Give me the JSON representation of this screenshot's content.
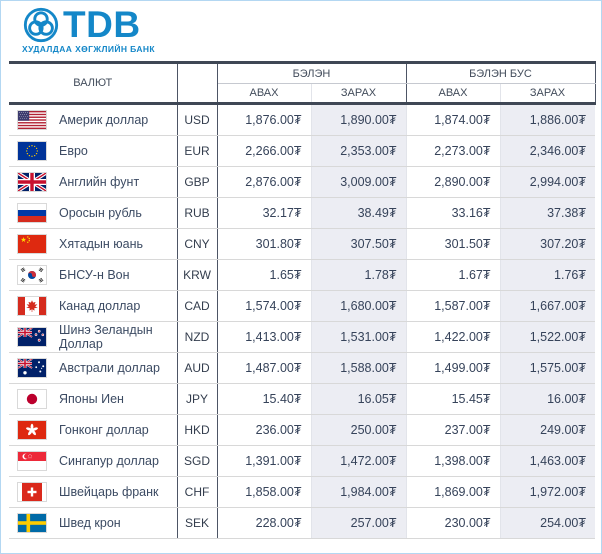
{
  "brand": {
    "name": "TDB",
    "tagline": "ХУДАЛДАА ХӨГЖЛИЙН БАНК",
    "color": "#1487c8"
  },
  "table": {
    "col_currency": "ВАЛЮТ",
    "group_cash": "БЭЛЭН",
    "group_noncash": "БЭЛЭН БУС",
    "col_buy": "АВАХ",
    "col_sell": "ЗАРАХ",
    "rows": [
      {
        "flag": "us",
        "name": "Америк доллар",
        "code": "USD",
        "cash_buy": "1,876.00₮",
        "cash_sell": "1,890.00₮",
        "noncash_buy": "1,874.00₮",
        "noncash_sell": "1,886.00₮"
      },
      {
        "flag": "eu",
        "name": "Евро",
        "code": "EUR",
        "cash_buy": "2,266.00₮",
        "cash_sell": "2,353.00₮",
        "noncash_buy": "2,273.00₮",
        "noncash_sell": "2,346.00₮"
      },
      {
        "flag": "gb",
        "name": "Английн фунт",
        "code": "GBP",
        "cash_buy": "2,876.00₮",
        "cash_sell": "3,009.00₮",
        "noncash_buy": "2,890.00₮",
        "noncash_sell": "2,994.00₮"
      },
      {
        "flag": "ru",
        "name": "Оросын рубль",
        "code": "RUB",
        "cash_buy": "32.17₮",
        "cash_sell": "38.49₮",
        "noncash_buy": "33.16₮",
        "noncash_sell": "37.38₮"
      },
      {
        "flag": "cn",
        "name": "Хятадын юань",
        "code": "CNY",
        "cash_buy": "301.80₮",
        "cash_sell": "307.50₮",
        "noncash_buy": "301.50₮",
        "noncash_sell": "307.20₮"
      },
      {
        "flag": "kr",
        "name": "БНСУ-н Вон",
        "code": "KRW",
        "cash_buy": "1.65₮",
        "cash_sell": "1.78₮",
        "noncash_buy": "1.67₮",
        "noncash_sell": "1.76₮"
      },
      {
        "flag": "ca",
        "name": "Канад доллар",
        "code": "CAD",
        "cash_buy": "1,574.00₮",
        "cash_sell": "1,680.00₮",
        "noncash_buy": "1,587.00₮",
        "noncash_sell": "1,667.00₮"
      },
      {
        "flag": "nz",
        "name": "Шинэ Зеландын Доллар",
        "code": "NZD",
        "cash_buy": "1,413.00₮",
        "cash_sell": "1,531.00₮",
        "noncash_buy": "1,422.00₮",
        "noncash_sell": "1,522.00₮"
      },
      {
        "flag": "au",
        "name": "Австрали доллар",
        "code": "AUD",
        "cash_buy": "1,487.00₮",
        "cash_sell": "1,588.00₮",
        "noncash_buy": "1,499.00₮",
        "noncash_sell": "1,575.00₮"
      },
      {
        "flag": "jp",
        "name": "Японы Иен",
        "code": "JPY",
        "cash_buy": "15.40₮",
        "cash_sell": "16.05₮",
        "noncash_buy": "15.45₮",
        "noncash_sell": "16.00₮"
      },
      {
        "flag": "hk",
        "name": "Гонконг доллар",
        "code": "HKD",
        "cash_buy": "236.00₮",
        "cash_sell": "250.00₮",
        "noncash_buy": "237.00₮",
        "noncash_sell": "249.00₮"
      },
      {
        "flag": "sg",
        "name": "Сингапур доллар",
        "code": "SGD",
        "cash_buy": "1,391.00₮",
        "cash_sell": "1,472.00₮",
        "noncash_buy": "1,398.00₮",
        "noncash_sell": "1,463.00₮"
      },
      {
        "flag": "ch",
        "name": "Швейцарь франк",
        "code": "CHF",
        "cash_buy": "1,858.00₮",
        "cash_sell": "1,984.00₮",
        "noncash_buy": "1,869.00₮",
        "noncash_sell": "1,972.00₮"
      },
      {
        "flag": "se",
        "name": "Швед крон",
        "code": "SEK",
        "cash_buy": "228.00₮",
        "cash_sell": "257.00₮",
        "noncash_buy": "230.00₮",
        "noncash_sell": "254.00₮"
      }
    ]
  },
  "colors": {
    "accent": "#1487c8",
    "sell_cell_bg": "#ecedf3",
    "dark_border": "#3f4755",
    "page_border": "#b3d7f2"
  }
}
